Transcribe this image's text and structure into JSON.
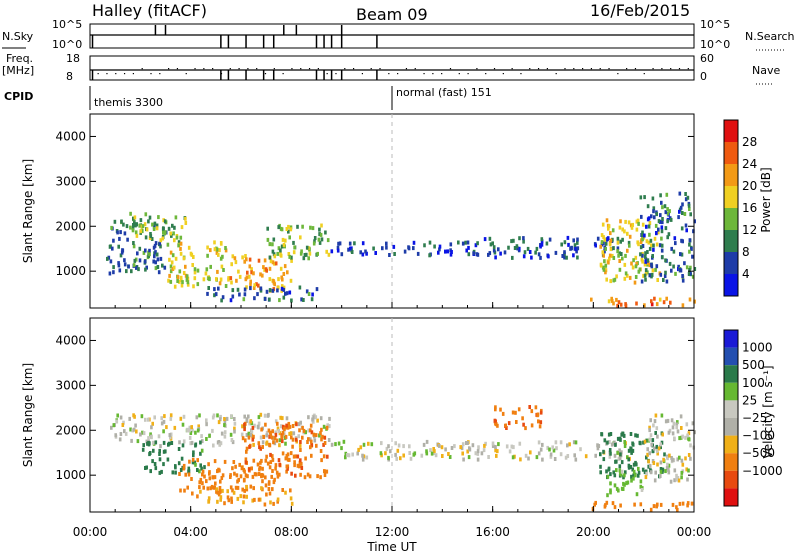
{
  "header": {
    "radar": "Halley (fitACF)",
    "beam": "Beam 09",
    "date": "16/Feb/2015"
  },
  "strip": {
    "nsky_label": "N.Sky",
    "nsky_ticks": [
      "10^5",
      "10^0"
    ],
    "nsearch_label": "N.Search",
    "nsearch_ticks": [
      "10^5",
      "10^0"
    ],
    "freq_label_1": "Freq.",
    "freq_label_2": "[MHz]",
    "freq_ticks": [
      "18",
      "8"
    ],
    "nave_label": "Nave",
    "nave_ticks": [
      "60",
      "0"
    ],
    "cpid_label": "CPID",
    "modes": [
      {
        "name": "themis 3300",
        "start_hour": 0
      },
      {
        "name": "normal (fast) 151",
        "start_hour": 12
      }
    ]
  },
  "colors": {
    "power_scale": [
      "#0a14e6",
      "#1e3ca8",
      "#2f7d4e",
      "#6db73a",
      "#f0d022",
      "#f39a16",
      "#ef5a10",
      "#e01010"
    ],
    "velocity_scale": [
      "#1a1ad6",
      "#234fb0",
      "#2a7a4a",
      "#66b832",
      "#c8c8c0",
      "#b0b0a8",
      "#f0b018",
      "#f07f10",
      "#e84a10",
      "#e01010"
    ]
  },
  "chart_data": [
    {
      "type": "heatmap",
      "name": "power",
      "ylabel": "Slant Range [km]",
      "xlabel": "",
      "x_ticks": [
        "00:00",
        "04:00",
        "08:00",
        "12:00",
        "16:00",
        "20:00",
        "00:00"
      ],
      "xlim_hours": [
        0,
        24
      ],
      "ylim": [
        180,
        4500
      ],
      "y_ticks": [
        "1000",
        "2000",
        "3000",
        "4000"
      ],
      "colorbar_label": "Power [dB]",
      "colorbar_ticks": [
        "4",
        "8",
        "12",
        "16",
        "20",
        "24",
        "28"
      ],
      "colorbar_range": [
        0,
        32
      ],
      "echo_bands": [
        {
          "t0": 0.6,
          "t1": 3.0,
          "r0": 900,
          "r1": 2100,
          "p": 9
        },
        {
          "t0": 1.5,
          "t1": 3.8,
          "r0": 1600,
          "r1": 2300,
          "p": 14
        },
        {
          "t0": 3.0,
          "t1": 5.5,
          "r0": 600,
          "r1": 1600,
          "p": 17
        },
        {
          "t0": 5.5,
          "t1": 8.0,
          "r0": 500,
          "r1": 1300,
          "p": 21
        },
        {
          "t0": 7.0,
          "t1": 9.5,
          "r0": 1200,
          "r1": 2000,
          "p": 14
        },
        {
          "t0": 4.5,
          "t1": 9.0,
          "r0": 300,
          "r1": 600,
          "p": 8
        },
        {
          "t0": 9.5,
          "t1": 15.5,
          "r0": 1300,
          "r1": 1600,
          "p": 6
        },
        {
          "t0": 15.5,
          "t1": 21.5,
          "r0": 1250,
          "r1": 1700,
          "p": 7
        },
        {
          "t0": 20.2,
          "t1": 22.6,
          "r0": 700,
          "r1": 2100,
          "p": 18
        },
        {
          "t0": 21.8,
          "t1": 24.0,
          "r0": 700,
          "r1": 2700,
          "p": 8
        },
        {
          "t0": 19.8,
          "t1": 24.0,
          "r0": 180,
          "r1": 350,
          "p": 24
        }
      ]
    },
    {
      "type": "heatmap",
      "name": "velocity",
      "ylabel": "Slant Range [km]",
      "xlabel": "Time UT",
      "x_ticks": [
        "00:00",
        "04:00",
        "08:00",
        "12:00",
        "16:00",
        "20:00",
        "00:00"
      ],
      "xlim_hours": [
        0,
        24
      ],
      "ylim": [
        180,
        4500
      ],
      "y_ticks": [
        "1000",
        "2000",
        "3000",
        "4000"
      ],
      "colorbar_label": "Velocity [m s⁻¹]",
      "colorbar_ticks": [
        "1000",
        "500",
        "100",
        "25",
        "−25",
        "−100",
        "−500",
        "−1000"
      ],
      "echo_bands": [
        {
          "t0": 0.6,
          "t1": 9.5,
          "r0": 1600,
          "r1": 2300,
          "v": 0
        },
        {
          "t0": 2.0,
          "t1": 4.5,
          "r0": 1000,
          "r1": 1700,
          "v": 150
        },
        {
          "t0": 3.5,
          "t1": 7.5,
          "r0": 600,
          "r1": 1300,
          "v": -300
        },
        {
          "t0": 6.0,
          "t1": 9.5,
          "r0": 900,
          "r1": 2100,
          "v": -400
        },
        {
          "t0": 4.0,
          "t1": 8.0,
          "r0": 300,
          "r1": 700,
          "v": -100
        },
        {
          "t0": 9.5,
          "t1": 21.5,
          "r0": 1300,
          "r1": 1700,
          "v": 0
        },
        {
          "t0": 16.0,
          "t1": 18.0,
          "r0": 2000,
          "r1": 2500,
          "v": -400
        },
        {
          "t0": 20.2,
          "t1": 22.8,
          "r0": 900,
          "r1": 1900,
          "v": 300
        },
        {
          "t0": 20.5,
          "t1": 22.0,
          "r0": 500,
          "r1": 1100,
          "v": 60
        },
        {
          "t0": 22.0,
          "t1": 24.0,
          "r0": 800,
          "r1": 2300,
          "v": 0
        },
        {
          "t0": 19.8,
          "t1": 24.0,
          "r0": 180,
          "r1": 350,
          "v": -200
        }
      ]
    }
  ]
}
